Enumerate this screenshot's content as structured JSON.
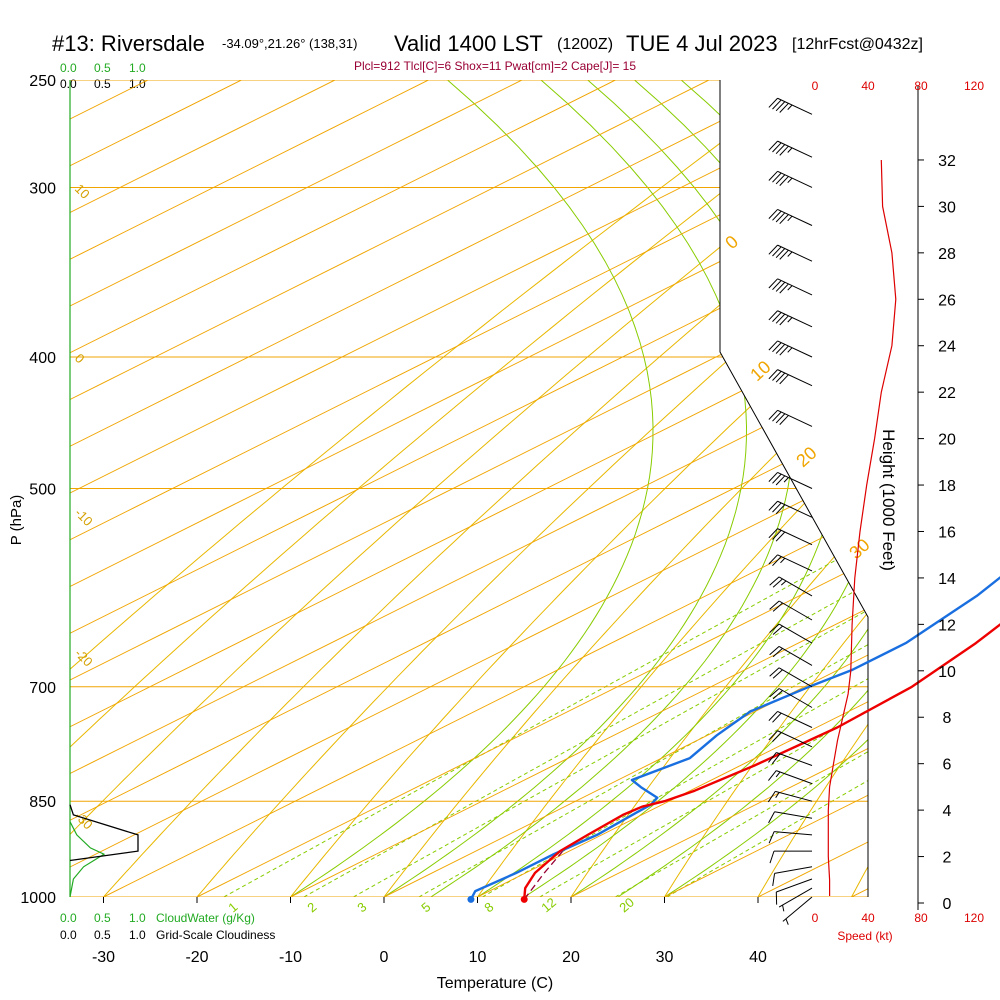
{
  "header": {
    "station": "#13: Riversdale",
    "coords": "-34.09°,21.26° (138,31)",
    "valid": "Valid 1400 LST",
    "utc": "(1200Z)",
    "date": "TUE 4 Jul 2023",
    "forecast": "[12hrFcst@0432z]"
  },
  "indices": "Plcl=912 Tlcl[C]=6 Shox=11 Pwat[cm]=2 Cape[J]= 15",
  "colors": {
    "isotherm": "#f0a500",
    "dry_adiabat": "#e8b800",
    "moist_adiabat": "#88cc00",
    "temperature": "#ee0000",
    "dewpoint": "#1a6fe0",
    "cloud_water": "#22aa22",
    "speed": "#dd0000"
  },
  "cloud_scales": {
    "top_green": [
      "0.0",
      "0.5",
      "1.0"
    ],
    "top_black": [
      "0.0",
      "0.5",
      "1.0"
    ],
    "bottom_green": [
      "0.0",
      "0.5",
      "1.0"
    ],
    "bottom_green_label": "CloudWater (g/Kg)",
    "bottom_black": [
      "0.0",
      "0.5",
      "1.0"
    ],
    "bottom_black_label": "Grid-Scale Cloudiness"
  },
  "speed_axis": {
    "top_ticks": [
      "0",
      "40",
      "80",
      "120"
    ],
    "bottom_ticks": [
      "0",
      "40",
      "80",
      "120"
    ],
    "label": "Speed (kt)"
  },
  "height_axis": {
    "label": "Height (1000 Feet)",
    "ticks": [
      "0",
      "2",
      "4",
      "6",
      "8",
      "10",
      "12",
      "14",
      "16",
      "18",
      "20",
      "22",
      "24",
      "26",
      "28",
      "30",
      "32"
    ]
  },
  "chart_data": {
    "type": "line",
    "title": "#13: Riversdale Valid 1400 LST (1200Z) TUE 4 Jul 2023",
    "xlabel": "Temperature (C)",
    "ylabel": "P (hPa)",
    "xlim": [
      -35,
      45
    ],
    "x_ticks": [
      -30,
      -20,
      -10,
      0,
      10,
      20,
      30,
      40
    ],
    "p_ticks": [
      250,
      300,
      400,
      500,
      700,
      850,
      1000
    ],
    "isotherm_labels": [
      {
        "text": "0",
        "t": 0
      },
      {
        "text": "10",
        "t": 10
      },
      {
        "text": "20",
        "t": 20
      },
      {
        "text": "30",
        "t": 30
      }
    ],
    "dry_adiabat_labels": [
      {
        "text": "10",
        "p": 300
      },
      {
        "text": "0",
        "p": 400
      },
      {
        "text": "-10",
        "p": 520
      },
      {
        "text": "-20",
        "p": 660
      },
      {
        "text": "-30",
        "p": 870
      }
    ],
    "mixing_ratio_labels": [
      "1",
      "2",
      "3",
      "5",
      "8",
      "12",
      "20"
    ],
    "temperature_profile": {
      "name": "Temperature",
      "p": [
        1004,
        985,
        960,
        925,
        900,
        870,
        858,
        850,
        835,
        800,
        750,
        700,
        650,
        600,
        550,
        500,
        450,
        400,
        350,
        300,
        265
      ],
      "t": [
        15.5,
        13.2,
        11.0,
        9.0,
        8.5,
        8.0,
        8.3,
        9.5,
        10.5,
        11.5,
        12.2,
        11.5,
        9.0,
        5.5,
        1.0,
        -5.0,
        -12.0,
        -20.0,
        -28.0,
        -37.0,
        -45.0
      ]
    },
    "dewpoint_profile": {
      "name": "Dewpoint",
      "p": [
        1004,
        990,
        960,
        930,
        900,
        870,
        855,
        845,
        830,
        820,
        790,
        760,
        730,
        700,
        680,
        650,
        600,
        550,
        500,
        470,
        440,
        400,
        380,
        370,
        350,
        320,
        300,
        275,
        265
      ],
      "t": [
        9.8,
        8.5,
        9.0,
        9.0,
        9.5,
        9.0,
        8.8,
        8.0,
        4.0,
        1.5,
        3.0,
        1.0,
        -0.5,
        0.5,
        1.5,
        1.5,
        -1.0,
        -5.0,
        -10.0,
        -14.0,
        -18.5,
        -28.0,
        -40.0,
        -50.0,
        -47.0,
        -42.0,
        -41.0,
        -39.0,
        -38.0
      ]
    },
    "parcel_path": {
      "name": "Parcel",
      "p": [
        1004,
        960,
        925
      ],
      "t": [
        15.5,
        12.0,
        9.3
      ]
    },
    "wind_barbs": [
      {
        "p": 1000,
        "dir": 230,
        "spd": 5
      },
      {
        "p": 985,
        "dir": 240,
        "spd": 5
      },
      {
        "p": 970,
        "dir": 250,
        "spd": 10
      },
      {
        "p": 950,
        "dir": 260,
        "spd": 10
      },
      {
        "p": 925,
        "dir": 270,
        "spd": 10
      },
      {
        "p": 900,
        "dir": 275,
        "spd": 10
      },
      {
        "p": 875,
        "dir": 280,
        "spd": 10
      },
      {
        "p": 850,
        "dir": 285,
        "spd": 15
      },
      {
        "p": 825,
        "dir": 290,
        "spd": 15
      },
      {
        "p": 800,
        "dir": 290,
        "spd": 20
      },
      {
        "p": 775,
        "dir": 295,
        "spd": 20
      },
      {
        "p": 750,
        "dir": 295,
        "spd": 20
      },
      {
        "p": 725,
        "dir": 300,
        "spd": 20
      },
      {
        "p": 700,
        "dir": 300,
        "spd": 20
      },
      {
        "p": 675,
        "dir": 300,
        "spd": 20
      },
      {
        "p": 650,
        "dir": 300,
        "spd": 20
      },
      {
        "p": 625,
        "dir": 300,
        "spd": 20
      },
      {
        "p": 600,
        "dir": 300,
        "spd": 25
      },
      {
        "p": 575,
        "dir": 295,
        "spd": 25
      },
      {
        "p": 550,
        "dir": 295,
        "spd": 30
      },
      {
        "p": 525,
        "dir": 295,
        "spd": 30
      },
      {
        "p": 500,
        "dir": 295,
        "spd": 35
      },
      {
        "p": 450,
        "dir": 295,
        "spd": 40
      },
      {
        "p": 420,
        "dir": 295,
        "spd": 40
      },
      {
        "p": 400,
        "dir": 295,
        "spd": 45
      },
      {
        "p": 380,
        "dir": 295,
        "spd": 45
      },
      {
        "p": 360,
        "dir": 295,
        "spd": 45
      },
      {
        "p": 340,
        "dir": 295,
        "spd": 45
      },
      {
        "p": 320,
        "dir": 295,
        "spd": 45
      },
      {
        "p": 300,
        "dir": 295,
        "spd": 45
      },
      {
        "p": 285,
        "dir": 295,
        "spd": 45
      },
      {
        "p": 265,
        "dir": 295,
        "spd": 45
      }
    ],
    "speed_profile": {
      "name": "Wind speed (kt)",
      "height_kft": [
        0.3,
        1,
        2,
        3,
        4,
        5,
        6,
        7,
        8,
        9,
        10,
        12,
        14,
        16,
        18,
        20,
        22,
        24,
        26,
        28,
        30,
        32
      ],
      "speed": [
        11,
        11,
        10,
        10,
        10,
        11,
        14,
        17,
        21,
        25,
        27,
        28,
        30,
        34,
        39,
        45,
        50,
        58,
        61,
        58,
        51,
        50
      ]
    },
    "cloud_water_profile": {
      "name": "CloudWater (g/Kg)",
      "p": [
        1000,
        970,
        950,
        940,
        930,
        920,
        900,
        880
      ],
      "v": [
        0.0,
        0.05,
        0.2,
        0.35,
        0.5,
        0.3,
        0.1,
        0.0
      ]
    },
    "cloudiness_profile": {
      "name": "Grid-Scale Cloudiness",
      "p": [
        940,
        925,
        900,
        870,
        855
      ],
      "v": [
        0.0,
        1.0,
        1.0,
        0.05,
        0.0
      ]
    }
  }
}
